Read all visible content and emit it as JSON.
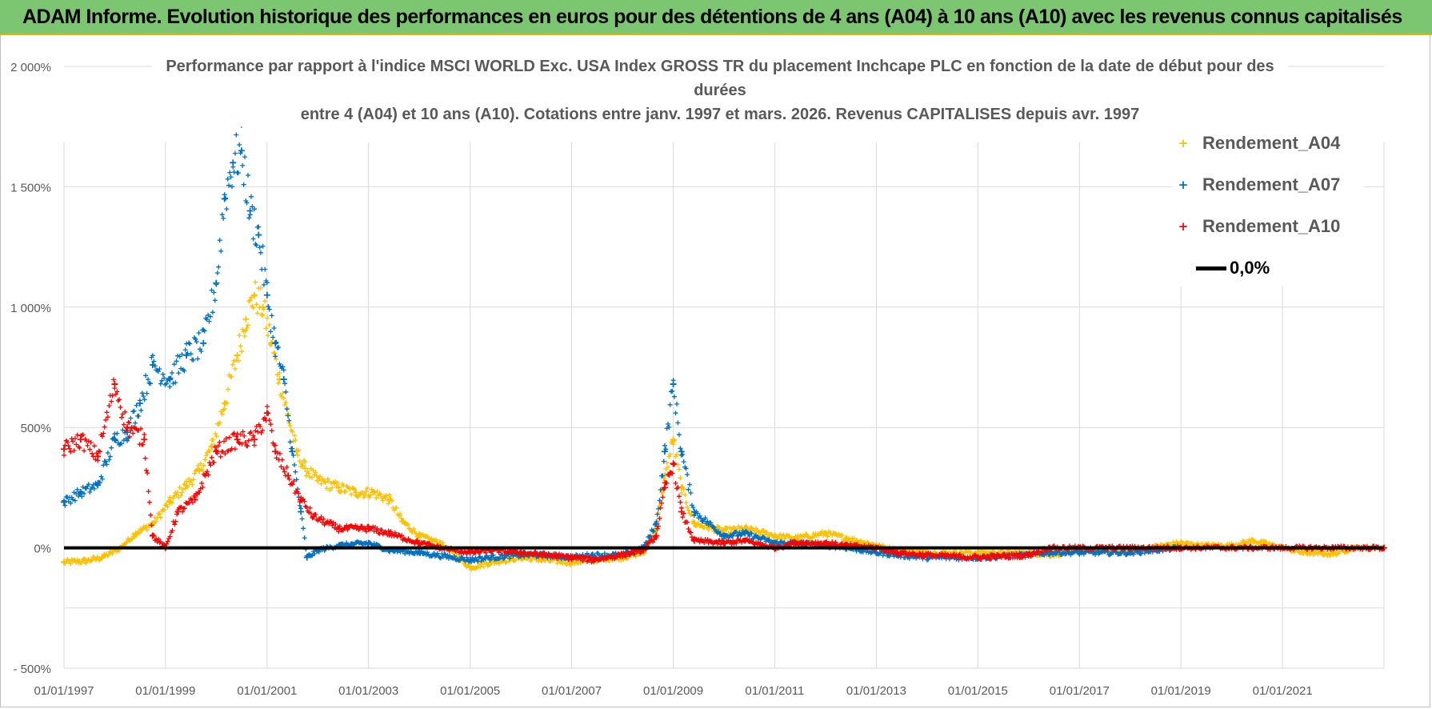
{
  "header": {
    "banner": "ADAM Informe. Evolution historique des performances en euros pour des détentions de 4 ans (A04) à 10 ans (A10) avec les revenus connus capitalisés"
  },
  "chart_data": {
    "type": "scatter",
    "title_lines": [
      "Performance par rapport à l'indice MSCI WORLD Exc. USA Index GROSS TR  du placement Inchcape PLC en fonction de la date de début pour des",
      "durées",
      "entre 4 (A04) et 10 ans (A10). Cotations entre janv. 1997 et mars. 2026. Revenus CAPITALISES depuis avr. 1997"
    ],
    "xlabel": "",
    "ylabel": "",
    "x_ticks": [
      "01/01/1997",
      "01/01/1999",
      "01/01/2001",
      "01/01/2003",
      "01/01/2005",
      "01/01/2007",
      "01/01/2009",
      "01/01/2011",
      "01/01/2013",
      "01/01/2015",
      "01/01/2017",
      "01/01/2019",
      "01/01/2021"
    ],
    "x_range": [
      "1997-01-01",
      "2023-01-01"
    ],
    "y_ticks": [
      "- 500%",
      "0%",
      "500%",
      "1 000%",
      "1 500%",
      "2 000%"
    ],
    "ylim": [
      -500,
      2000
    ],
    "grid": true,
    "legend_position": "top-right",
    "series": [
      {
        "name": "Rendement_A04",
        "color": "#ffc000",
        "marker": "+",
        "points": [
          [
            "1997-01-01",
            -60
          ],
          [
            "1997-06-01",
            -55
          ],
          [
            "1997-10-01",
            -40
          ],
          [
            "1998-02-01",
            -5
          ],
          [
            "1998-06-01",
            60
          ],
          [
            "1998-10-01",
            100
          ],
          [
            "1999-02-01",
            190
          ],
          [
            "1999-06-01",
            260
          ],
          [
            "1999-09-01",
            320
          ],
          [
            "1999-12-01",
            420
          ],
          [
            "2000-03-01",
            600
          ],
          [
            "2000-06-01",
            800
          ],
          [
            "2000-08-01",
            950
          ],
          [
            "2000-10-01",
            1050
          ],
          [
            "2000-12-01",
            1000
          ],
          [
            "2001-02-01",
            850
          ],
          [
            "2001-04-01",
            700
          ],
          [
            "2001-06-01",
            550
          ],
          [
            "2001-08-01",
            400
          ],
          [
            "2001-10-01",
            330
          ],
          [
            "2002-01-01",
            280
          ],
          [
            "2002-06-01",
            250
          ],
          [
            "2002-10-01",
            230
          ],
          [
            "2003-02-01",
            230
          ],
          [
            "2003-06-01",
            200
          ],
          [
            "2003-09-01",
            110
          ],
          [
            "2004-01-01",
            50
          ],
          [
            "2004-06-01",
            20
          ],
          [
            "2004-10-01",
            -40
          ],
          [
            "2005-01-01",
            -80
          ],
          [
            "2005-06-01",
            -60
          ],
          [
            "2006-01-01",
            -40
          ],
          [
            "2006-06-01",
            -50
          ],
          [
            "2007-01-01",
            -60
          ],
          [
            "2007-06-01",
            -50
          ],
          [
            "2008-01-01",
            -40
          ],
          [
            "2008-06-01",
            -20
          ],
          [
            "2008-09-01",
            80
          ],
          [
            "2008-11-01",
            300
          ],
          [
            "2009-01-01",
            450
          ],
          [
            "2009-03-01",
            250
          ],
          [
            "2009-06-01",
            100
          ],
          [
            "2010-01-01",
            70
          ],
          [
            "2010-06-01",
            80
          ],
          [
            "2011-01-01",
            50
          ],
          [
            "2011-06-01",
            40
          ],
          [
            "2012-01-01",
            60
          ],
          [
            "2012-06-01",
            40
          ],
          [
            "2013-01-01",
            10
          ],
          [
            "2013-06-01",
            -10
          ],
          [
            "2014-01-01",
            -20
          ],
          [
            "2015-01-01",
            -20
          ],
          [
            "2016-01-01",
            -20
          ],
          [
            "2016-06-01",
            -30
          ],
          [
            "2017-01-01",
            -10
          ],
          [
            "2018-01-01",
            -10
          ],
          [
            "2019-01-01",
            20
          ],
          [
            "2019-06-01",
            10
          ],
          [
            "2020-01-01",
            10
          ],
          [
            "2020-06-01",
            30
          ],
          [
            "2021-01-01",
            0
          ],
          [
            "2021-06-01",
            -20
          ],
          [
            "2022-01-01",
            -25
          ],
          [
            "2022-06-01",
            0
          ],
          [
            "2023-01-01",
            0
          ]
        ]
      },
      {
        "name": "Rendement_A07",
        "color": "#0070c0",
        "marker": "+",
        "points": [
          [
            "1997-01-01",
            190
          ],
          [
            "1997-05-01",
            230
          ],
          [
            "1997-09-01",
            260
          ],
          [
            "1998-01-01",
            450
          ],
          [
            "1998-04-01",
            480
          ],
          [
            "1998-07-01",
            600
          ],
          [
            "1998-10-01",
            760
          ],
          [
            "1999-02-01",
            700
          ],
          [
            "1999-06-01",
            800
          ],
          [
            "1999-10-01",
            850
          ],
          [
            "2000-01-01",
            1100
          ],
          [
            "2000-03-01",
            1450
          ],
          [
            "2000-05-01",
            1600
          ],
          [
            "2000-07-01",
            1650
          ],
          [
            "2000-09-01",
            1400
          ],
          [
            "2000-11-01",
            1300
          ],
          [
            "2001-01-01",
            1050
          ],
          [
            "2001-03-01",
            850
          ],
          [
            "2001-05-01",
            700
          ],
          [
            "2001-07-01",
            400
          ],
          [
            "2001-09-01",
            150
          ],
          [
            "2001-10-15",
            -40
          ],
          [
            "2002-01-01",
            -10
          ],
          [
            "2002-06-01",
            10
          ],
          [
            "2003-01-01",
            20
          ],
          [
            "2003-06-01",
            -10
          ],
          [
            "2004-01-01",
            -20
          ],
          [
            "2005-01-01",
            -50
          ],
          [
            "2005-06-01",
            -40
          ],
          [
            "2006-01-01",
            -30
          ],
          [
            "2006-06-01",
            -30
          ],
          [
            "2007-01-01",
            -40
          ],
          [
            "2007-06-01",
            -30
          ],
          [
            "2008-01-01",
            -30
          ],
          [
            "2008-06-01",
            0
          ],
          [
            "2008-09-01",
            100
          ],
          [
            "2008-11-01",
            400
          ],
          [
            "2009-01-01",
            680
          ],
          [
            "2009-03-01",
            400
          ],
          [
            "2009-06-01",
            150
          ],
          [
            "2010-01-01",
            50
          ],
          [
            "2010-06-01",
            60
          ],
          [
            "2011-01-01",
            20
          ],
          [
            "2011-06-01",
            20
          ],
          [
            "2012-01-01",
            10
          ],
          [
            "2012-06-01",
            0
          ],
          [
            "2013-01-01",
            -20
          ],
          [
            "2013-06-01",
            -30
          ],
          [
            "2014-01-01",
            -40
          ],
          [
            "2015-01-01",
            -40
          ],
          [
            "2016-01-01",
            -30
          ],
          [
            "2016-06-01",
            -20
          ],
          [
            "2017-01-01",
            -20
          ],
          [
            "2018-01-01",
            -20
          ],
          [
            "2019-01-01",
            0
          ]
        ]
      },
      {
        "name": "Rendement_A10",
        "color": "#ff0000",
        "marker": "+",
        "points": [
          [
            "1997-01-01",
            410
          ],
          [
            "1997-05-01",
            450
          ],
          [
            "1997-09-01",
            380
          ],
          [
            "1998-01-01",
            680
          ],
          [
            "1998-04-01",
            500
          ],
          [
            "1998-08-01",
            450
          ],
          [
            "1998-10-01",
            50
          ],
          [
            "1999-01-01",
            0
          ],
          [
            "1999-04-01",
            150
          ],
          [
            "1999-08-01",
            200
          ],
          [
            "2000-01-01",
            400
          ],
          [
            "2000-06-01",
            450
          ],
          [
            "2000-10-01",
            450
          ],
          [
            "2001-01-01",
            560
          ],
          [
            "2001-03-01",
            400
          ],
          [
            "2001-06-01",
            300
          ],
          [
            "2001-09-01",
            200
          ],
          [
            "2001-12-01",
            130
          ],
          [
            "2002-06-01",
            80
          ],
          [
            "2003-01-01",
            80
          ],
          [
            "2003-06-01",
            60
          ],
          [
            "2004-01-01",
            20
          ],
          [
            "2004-06-01",
            0
          ],
          [
            "2005-01-01",
            -20
          ],
          [
            "2005-06-01",
            -10
          ],
          [
            "2006-01-01",
            -20
          ],
          [
            "2007-01-01",
            -40
          ],
          [
            "2007-06-01",
            -50
          ],
          [
            "2008-01-01",
            -30
          ],
          [
            "2008-06-01",
            -10
          ],
          [
            "2008-09-01",
            50
          ],
          [
            "2008-11-01",
            250
          ],
          [
            "2009-01-01",
            350
          ],
          [
            "2009-03-01",
            150
          ],
          [
            "2009-06-01",
            30
          ],
          [
            "2010-01-01",
            20
          ],
          [
            "2010-06-01",
            30
          ],
          [
            "2011-01-01",
            0
          ],
          [
            "2011-06-01",
            20
          ],
          [
            "2012-01-01",
            20
          ],
          [
            "2012-06-01",
            10
          ],
          [
            "2013-01-01",
            0
          ],
          [
            "2013-06-01",
            -20
          ],
          [
            "2014-01-01",
            -30
          ],
          [
            "2015-01-01",
            -40
          ],
          [
            "2016-01-01",
            -30
          ],
          [
            "2016-06-01",
            0
          ],
          [
            "2017-01-01",
            0
          ],
          [
            "2018-01-01",
            0
          ],
          [
            "2019-01-01",
            0
          ],
          [
            "2020-01-01",
            0
          ],
          [
            "2021-01-01",
            0
          ],
          [
            "2022-01-01",
            0
          ],
          [
            "2023-01-01",
            0
          ]
        ]
      },
      {
        "name": "0,0%",
        "color": "#000000",
        "marker": "line",
        "points": [
          [
            "1997-01-01",
            0
          ],
          [
            "2023-01-01",
            0
          ]
        ]
      }
    ]
  }
}
